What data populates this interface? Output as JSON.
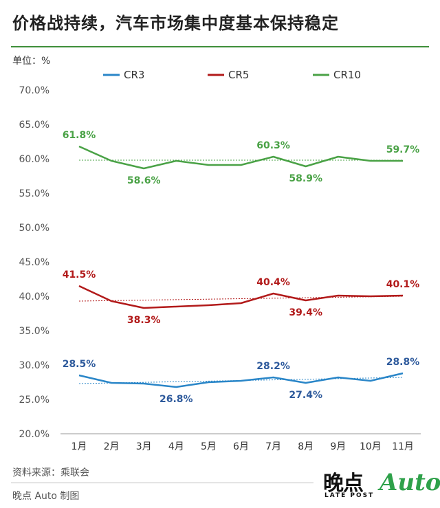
{
  "title": "价格战持续，汽车市场集中度基本保持稳定",
  "unit_label": "单位：%",
  "source": "资料来源：乘联会",
  "credit": "晚点 Auto 制图",
  "brand": {
    "cn": "晚点",
    "en": "LATE POST",
    "auto": "Auto"
  },
  "colors": {
    "cr3": "#2a86c8",
    "cr5": "#b21a1a",
    "cr10": "#4aa246",
    "accent_rule": "#3f8f3a",
    "label_cr3": "#2e5a9c"
  },
  "chart_data": {
    "type": "line",
    "categories": [
      "1月",
      "2月",
      "3月",
      "4月",
      "5月",
      "6月",
      "7月",
      "8月",
      "9月",
      "10月",
      "11月"
    ],
    "ylim": [
      20,
      70
    ],
    "yticks": [
      "20.0%",
      "25.0%",
      "30.0%",
      "35.0%",
      "40.0%",
      "45.0%",
      "50.0%",
      "55.0%",
      "60.0%",
      "65.0%",
      "70.0%"
    ],
    "grid": false,
    "legend": "top",
    "series": [
      {
        "name": "CR3",
        "values": [
          28.5,
          27.4,
          27.3,
          26.8,
          27.5,
          27.7,
          28.2,
          27.4,
          28.2,
          27.7,
          28.8
        ],
        "labels": {
          "0": "28.5%",
          "3": "26.8%",
          "6": "28.2%",
          "7": "27.4%",
          "10": "28.8%"
        },
        "trend": [
          27.3,
          28.2
        ]
      },
      {
        "name": "CR5",
        "values": [
          41.5,
          39.3,
          38.3,
          38.5,
          38.7,
          39.0,
          40.4,
          39.4,
          40.1,
          40.0,
          40.1
        ],
        "labels": {
          "0": "41.5%",
          "2": "38.3%",
          "6": "40.4%",
          "7": "39.4%",
          "10": "40.1%"
        },
        "trend": [
          39.3,
          40.0
        ]
      },
      {
        "name": "CR10",
        "values": [
          61.8,
          59.7,
          58.6,
          59.7,
          59.1,
          59.1,
          60.3,
          58.9,
          60.3,
          59.7,
          59.7
        ],
        "labels": {
          "0": "61.8%",
          "2": "58.6%",
          "6": "60.3%",
          "7": "58.9%",
          "10": "59.7%"
        },
        "trend": [
          59.8,
          59.8
        ]
      }
    ]
  }
}
